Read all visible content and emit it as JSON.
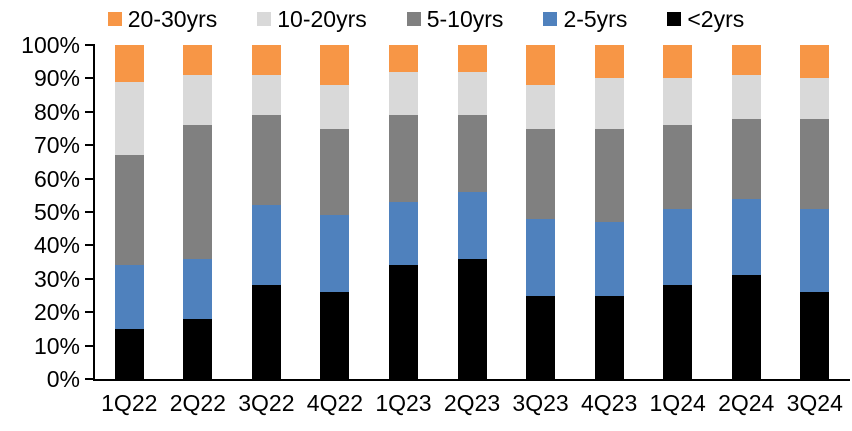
{
  "chart_data": {
    "type": "bar",
    "subtype": "stacked-100-percent-column",
    "categories": [
      "1Q22",
      "2Q22",
      "3Q22",
      "4Q22",
      "1Q23",
      "2Q23",
      "3Q23",
      "4Q23",
      "1Q24",
      "2Q24",
      "3Q24"
    ],
    "series": [
      {
        "name": "<2yrs",
        "color": "#000000",
        "values": [
          15,
          18,
          28,
          26,
          34,
          36,
          25,
          25,
          28,
          31,
          26
        ]
      },
      {
        "name": "2-5yrs",
        "color": "#4F81BD",
        "values": [
          19,
          18,
          24,
          23,
          19,
          20,
          23,
          22,
          23,
          23,
          25
        ]
      },
      {
        "name": "5-10yrs",
        "color": "#808080",
        "values": [
          33,
          40,
          27,
          26,
          26,
          23,
          27,
          28,
          25,
          24,
          27
        ]
      },
      {
        "name": "10-20yrs",
        "color": "#D9D9D9",
        "values": [
          22,
          15,
          12,
          13,
          13,
          13,
          13,
          15,
          14,
          13,
          12
        ]
      },
      {
        "name": "20-30yrs",
        "color": "#F79646",
        "values": [
          11,
          9,
          9,
          12,
          8,
          8,
          12,
          10,
          10,
          9,
          10
        ]
      }
    ],
    "legend": {
      "position": "top",
      "order": [
        "20-30yrs",
        "10-20yrs",
        "5-10yrs",
        "2-5yrs",
        "<2yrs"
      ]
    },
    "yaxis": {
      "min": 0,
      "max": 100,
      "unit": "%",
      "ticks_top_to_bottom": [
        "100%",
        "90%",
        "80%",
        "70%",
        "60%",
        "50%",
        "40%",
        "30%",
        "20%",
        "10%",
        "0%"
      ],
      "grid": false
    },
    "xlabel": "",
    "ylabel": "",
    "title": ""
  },
  "colors": {
    "axis": "#000000",
    "background": "#ffffff",
    "text": "#000000"
  }
}
